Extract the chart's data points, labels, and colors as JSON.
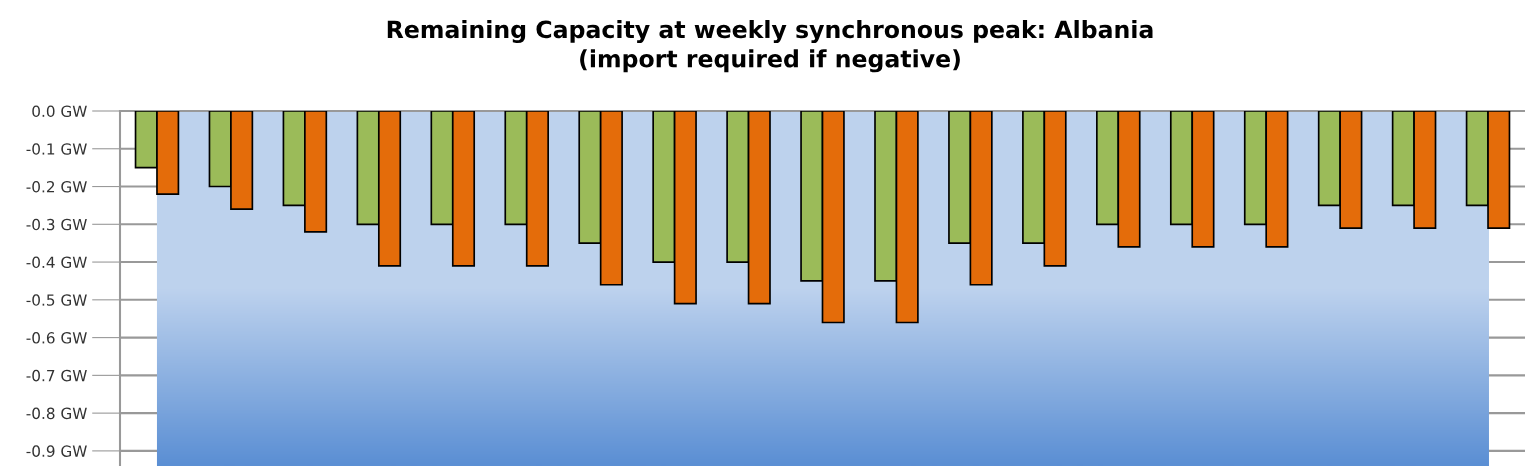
{
  "chart_data": {
    "type": "bar",
    "title": "Remaining Capacity at weekly synchronous peak: Albania\n(import required if negative)",
    "categories": [
      null,
      null,
      null,
      null,
      null,
      null,
      null,
      null,
      null,
      null,
      null,
      null,
      null,
      null,
      null,
      null,
      null,
      null,
      null
    ],
    "series": [
      {
        "color": "#9bbb59",
        "values": [
          -0.15,
          -0.2,
          -0.25,
          -0.3,
          -0.3,
          -0.3,
          -0.35,
          -0.4,
          -0.4,
          -0.45,
          -0.45,
          -0.35,
          -0.35,
          -0.3,
          -0.3,
          -0.3,
          -0.25,
          -0.25,
          -0.25
        ]
      },
      {
        "color": "#e46c0a",
        "values": [
          -0.22,
          -0.26,
          -0.32,
          -0.41,
          -0.41,
          -0.41,
          -0.46,
          -0.51,
          -0.51,
          -0.56,
          -0.56,
          -0.46,
          -0.41,
          -0.36,
          -0.36,
          -0.36,
          -0.31,
          -0.31,
          -0.31
        ]
      }
    ],
    "ylim": [
      -0.94,
      0
    ],
    "yticks": [
      {
        "value": 0,
        "label": "0.0 GW"
      },
      {
        "value": -0.1,
        "label": "-0.1 GW"
      },
      {
        "value": -0.2,
        "label": "-0.2 GW"
      },
      {
        "value": -0.3,
        "label": "-0.3 GW"
      },
      {
        "value": -0.4,
        "label": "-0.4 GW"
      },
      {
        "value": -0.5,
        "label": "-0.5 GW"
      },
      {
        "value": -0.6,
        "label": "-0.6 GW"
      },
      {
        "value": -0.7,
        "label": "-0.7 GW"
      },
      {
        "value": -0.8,
        "label": "-0.8 GW"
      },
      {
        "value": -0.9,
        "label": "-0.9 GW"
      }
    ],
    "grid": "y",
    "legend": false
  }
}
